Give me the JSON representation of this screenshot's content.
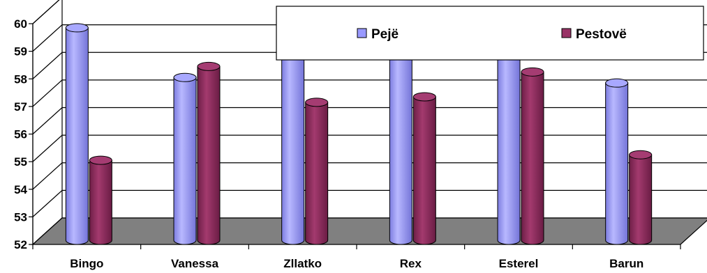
{
  "chart_data": {
    "type": "bar",
    "title": "",
    "xlabel": "",
    "ylabel": "",
    "ylim": [
      52,
      60
    ],
    "yticks": [
      "52",
      "53",
      "54",
      "55",
      "56",
      "57",
      "58",
      "59",
      "60"
    ],
    "categories": [
      "Bingo",
      "Vanessa",
      "Zllatko",
      "Rex",
      "Esterel",
      "Barun"
    ],
    "series": [
      {
        "name": "Pejë",
        "values": [
          59.8,
          58.0,
          59.8,
          59.9,
          59.7,
          57.8
        ],
        "color": "#9999ff"
      },
      {
        "name": "Pestovë",
        "values": [
          55.0,
          58.4,
          57.1,
          57.3,
          58.2,
          55.2
        ],
        "color": "#993366"
      }
    ],
    "legend": "top-right",
    "grid": true,
    "style": "3d-cylinder"
  }
}
